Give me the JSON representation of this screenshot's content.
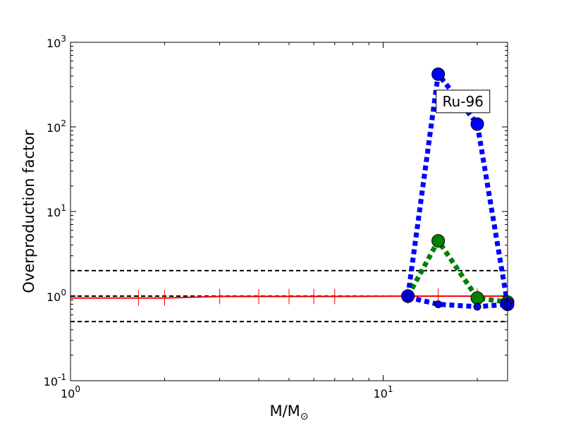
{
  "chart_data": {
    "type": "line",
    "title": "",
    "xlabel_main": "M/M",
    "xlabel_sub": "⊙",
    "ylabel": "Overproduction factor",
    "xscale": "log",
    "yscale": "log",
    "xlim": [
      1,
      25
    ],
    "ylim": [
      0.1,
      1000
    ],
    "x_ticks": [
      {
        "value": 1,
        "base": "10",
        "exp": "0"
      },
      {
        "value": 10,
        "base": "10",
        "exp": "1"
      }
    ],
    "y_ticks": [
      {
        "value": 0.1,
        "base": "10",
        "exp": "-1"
      },
      {
        "value": 1,
        "base": "10",
        "exp": "0"
      },
      {
        "value": 10,
        "base": "10",
        "exp": "1"
      },
      {
        "value": 100,
        "base": "10",
        "exp": "2"
      },
      {
        "value": 1000,
        "base": "10",
        "exp": "3"
      }
    ],
    "hlines": [
      {
        "y": 2.0,
        "color": "#000000",
        "style": "dashed"
      },
      {
        "y": 1.0,
        "color": "#000000",
        "style": "dashed"
      },
      {
        "y": 0.5,
        "color": "#000000",
        "style": "dashed"
      }
    ],
    "series": [
      {
        "color": "#ff0000",
        "style": "solid",
        "marker": "vline",
        "x": [
          1.0,
          1.65,
          2.0,
          3.0,
          4.0,
          5.0,
          6.0,
          7.0,
          12.0,
          15.0,
          20.0,
          25.0
        ],
        "y": [
          0.95,
          0.95,
          0.95,
          0.99,
          0.99,
          0.99,
          0.99,
          0.99,
          1.0,
          1.0,
          1.0,
          1.0
        ]
      },
      {
        "color": "#0000ff",
        "style": "dotted",
        "marker": "circle",
        "x": [
          12,
          15,
          20,
          25
        ],
        "y": [
          1.0,
          420,
          108,
          0.8
        ]
      },
      {
        "color": "#0000ff",
        "style": "dotted",
        "marker": "circle-small",
        "x": [
          12,
          15,
          20,
          25
        ],
        "y": [
          0.97,
          0.8,
          0.75,
          0.8
        ]
      },
      {
        "color": "#008000",
        "style": "dotted",
        "marker": "circle",
        "x": [
          12,
          15,
          20,
          25
        ],
        "y": [
          1.0,
          4.5,
          0.95,
          0.85
        ]
      }
    ],
    "annotation": {
      "text": "Ru-96",
      "x": 18,
      "y": 200
    }
  }
}
